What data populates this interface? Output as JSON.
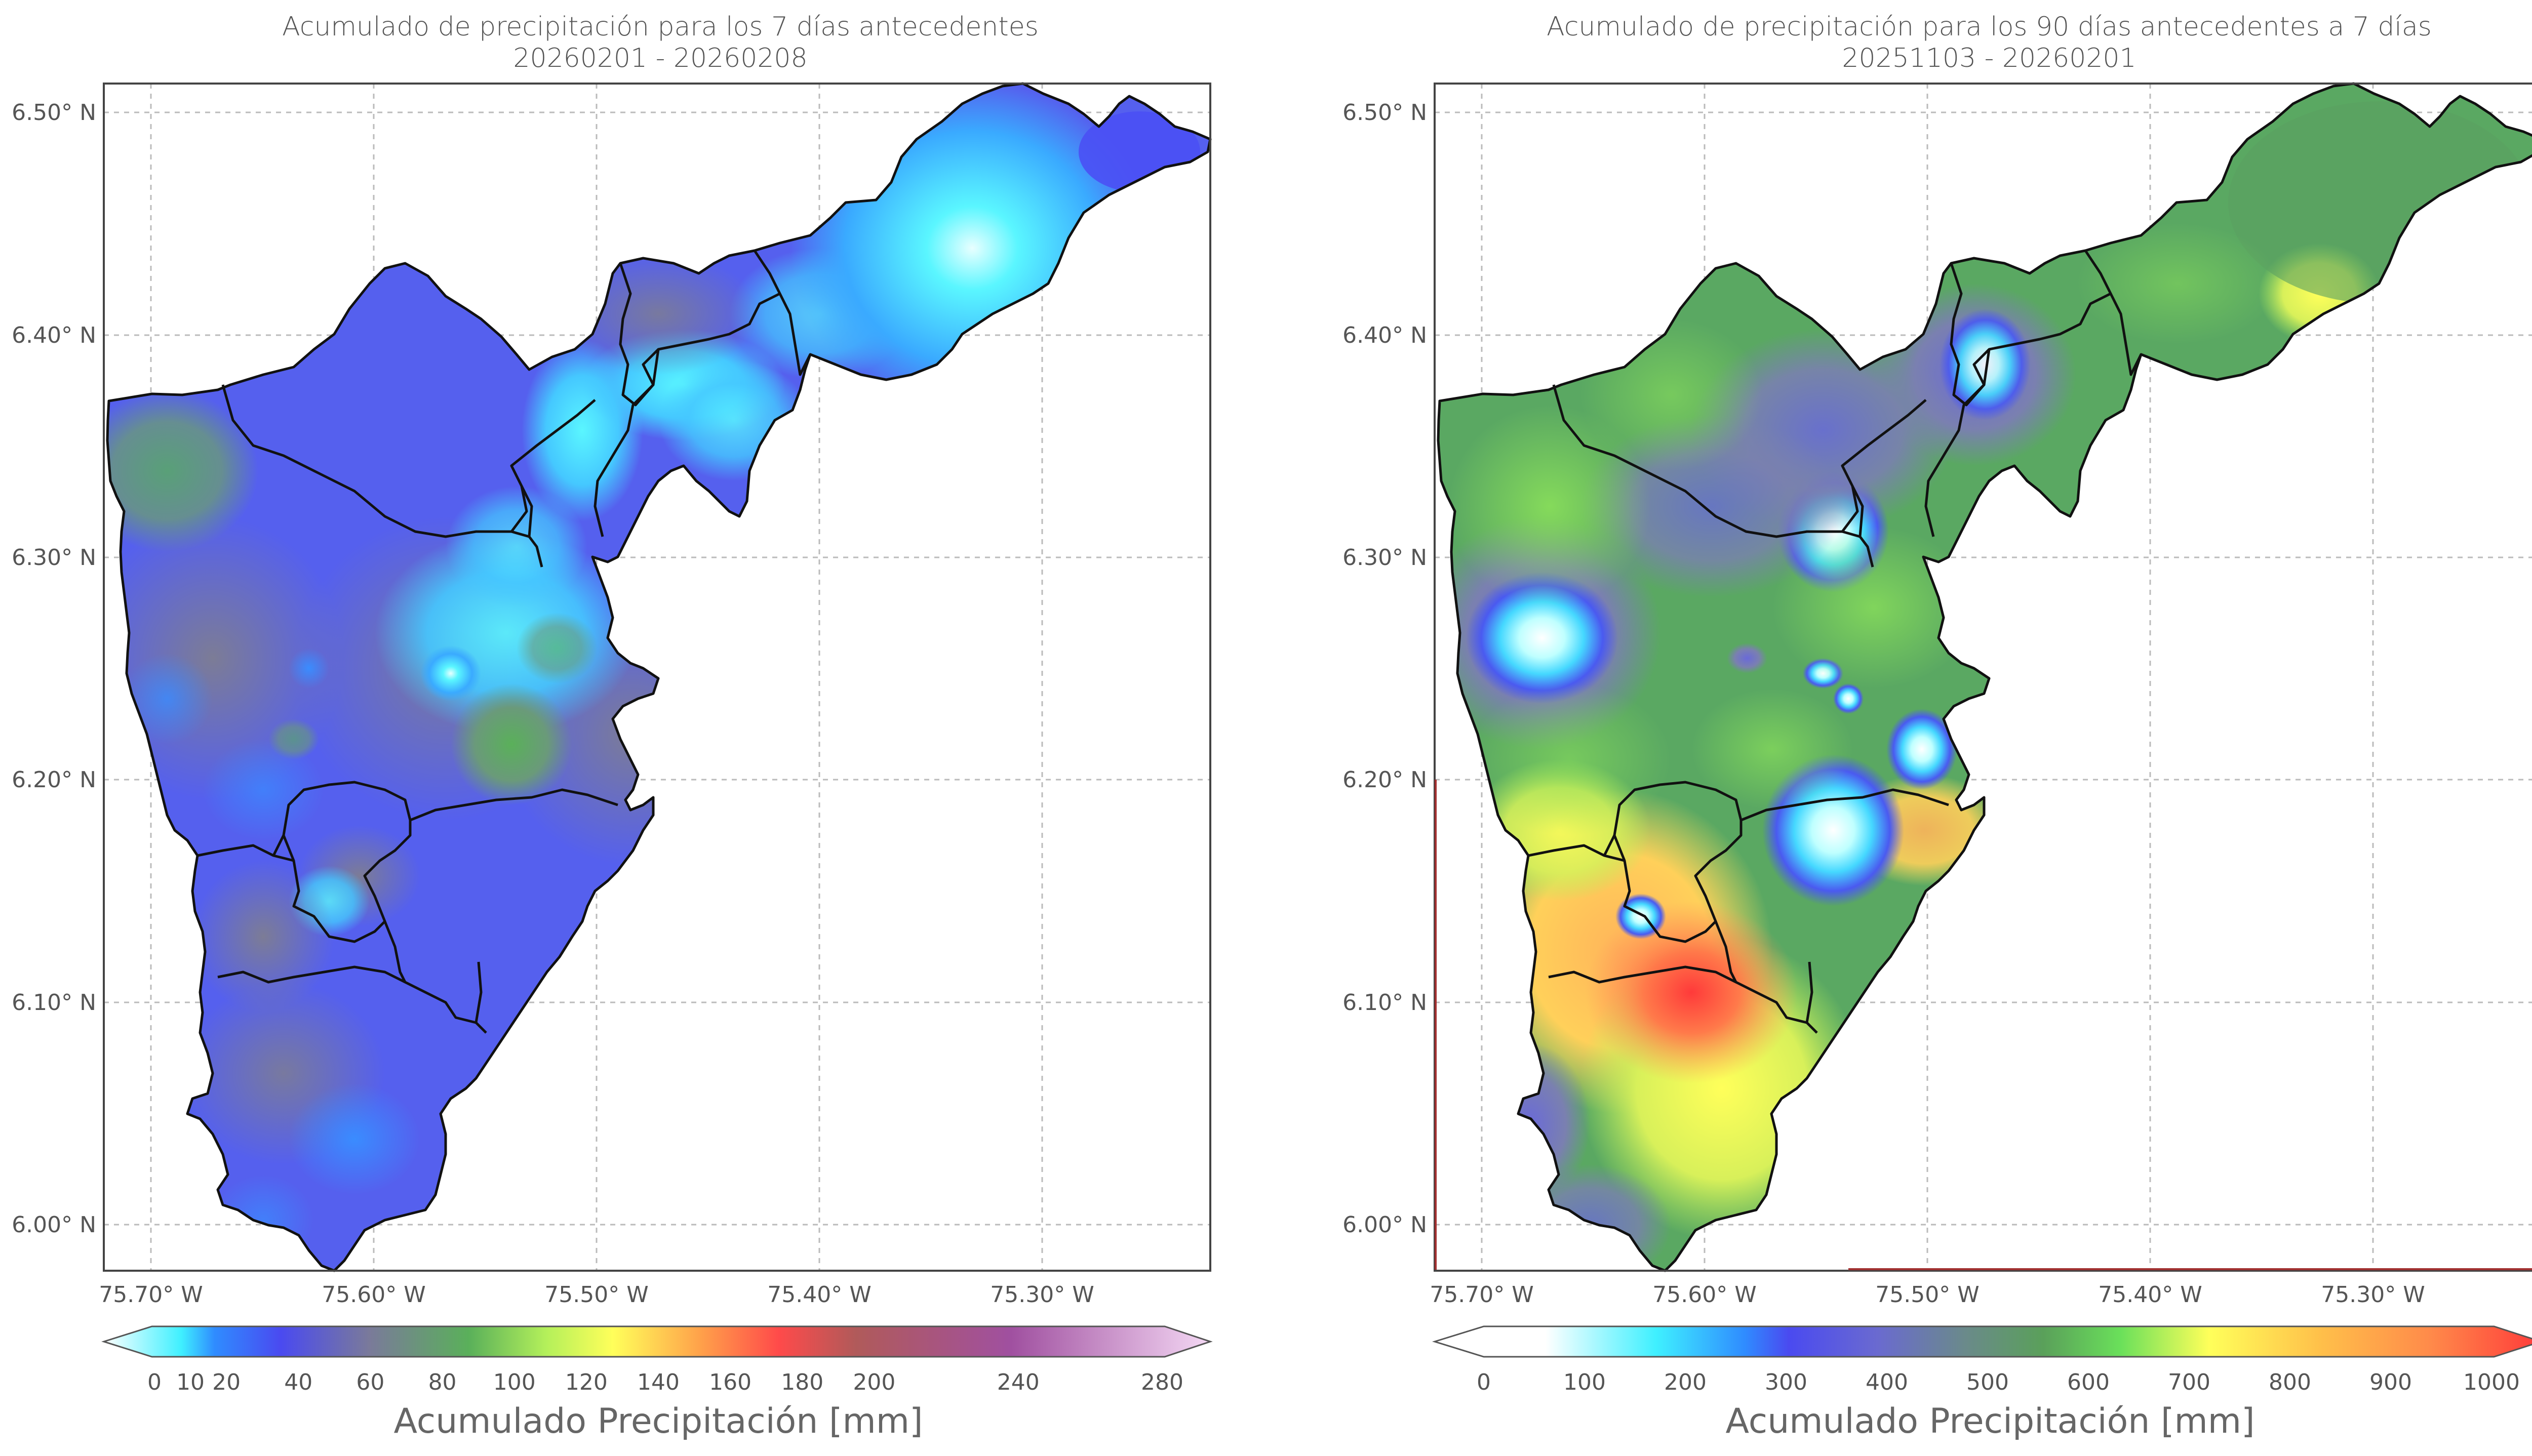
{
  "left_panel": {
    "title_line1": "Acumulado de precipitación para los 7 días antecedentes",
    "title_line2": "20260201 - 20260208",
    "colorbar_label": "Acumulado Precipitación [mm]",
    "colorbar_ticks": [
      "0",
      "10",
      "20",
      "40",
      "60",
      "80",
      "100",
      "120",
      "140",
      "160",
      "180",
      "200",
      "240",
      "280"
    ],
    "colorbar_colors": [
      "#ffffff",
      "#3ff0ff",
      "#2f8cff",
      "#4a4af0",
      "#6a6ad0",
      "#7a7a9a",
      "#5aa05a",
      "#5ad05a",
      "#b4f05a",
      "#ffff5a",
      "#ffc04a",
      "#ff8a4a",
      "#ff4a4a",
      "#c05a5a",
      "#a05aa0",
      "#c080c0",
      "#f0d0f0"
    ]
  },
  "right_panel": {
    "title_line1": "Acumulado de precipitación para los 90 días antecedentes a 7 días",
    "title_line2": "20251103 - 20260201",
    "colorbar_label": "Acumulado Precipitación [mm]",
    "colorbar_ticks": [
      "0",
      "100",
      "200",
      "300",
      "400",
      "500",
      "600",
      "700",
      "800",
      "900",
      "1000"
    ],
    "colorbar_colors": [
      "#ffffff",
      "#ffffff",
      "#3ff0ff",
      "#2f8cff",
      "#4a4af0",
      "#6a6ad0",
      "#6a8a8a",
      "#5aa05a",
      "#5ad05a",
      "#b4f05a",
      "#ffff5a",
      "#ffc04a",
      "#ff8a4a",
      "#ff4040"
    ]
  },
  "axes": {
    "lat_labels": [
      "6.50° N",
      "6.40° N",
      "6.30° N",
      "6.20° N",
      "6.10° N",
      "6.00° N"
    ],
    "lon_labels": [
      "75.70° W",
      "75.60° W",
      "75.50° W",
      "75.40° W",
      "75.30° W"
    ]
  }
}
